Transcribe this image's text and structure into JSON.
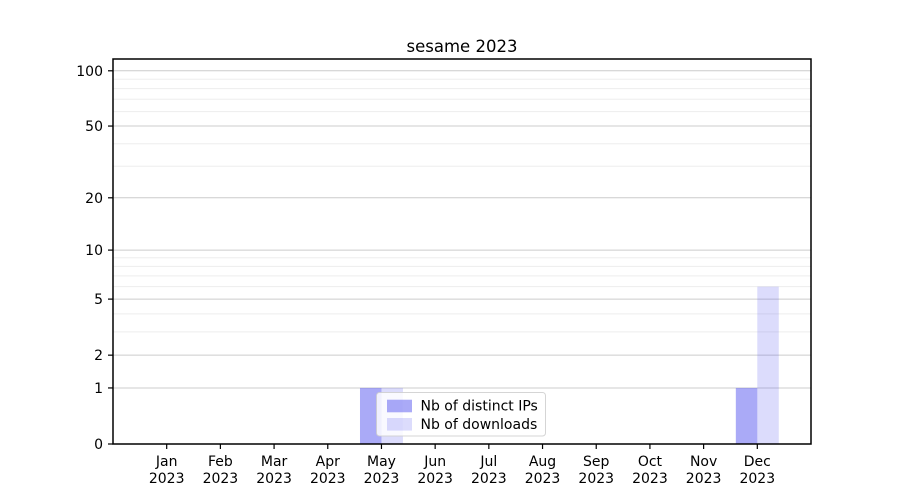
{
  "chart_data": {
    "type": "bar",
    "title": "sesame 2023",
    "categories": [
      "Jan 2023",
      "Feb 2023",
      "Mar 2023",
      "Apr 2023",
      "May 2023",
      "Jun 2023",
      "Jul 2023",
      "Aug 2023",
      "Sep 2023",
      "Oct 2023",
      "Nov 2023",
      "Dec 2023"
    ],
    "series": [
      {
        "name": "Nb of distinct IPs",
        "values": [
          0,
          0,
          0,
          0,
          1,
          0,
          0,
          0,
          0,
          0,
          0,
          1
        ],
        "fill": "#5555f0",
        "fill_opacity": 0.5,
        "rendered_color": "#a9aaf8"
      },
      {
        "name": "Nb of downloads",
        "values": [
          0,
          0,
          0,
          0,
          1,
          0,
          0,
          0,
          0,
          0,
          0,
          6
        ],
        "fill": "#5555f0",
        "fill_opacity": 0.206,
        "rendered_color": "#dbdcfa"
      }
    ],
    "xlabel": "",
    "ylabel": "",
    "yscale": "log1p",
    "y_major_ticks": [
      0,
      1,
      2,
      5,
      10,
      20,
      50,
      100
    ],
    "y_minor_gridlines": [
      3,
      4,
      6,
      7,
      8,
      9,
      30,
      40,
      60,
      70,
      80,
      90
    ],
    "ylim": [
      0,
      116
    ],
    "grid": "both",
    "legend_position": "lower-center",
    "colors": {
      "background": "#ffffff",
      "major_grid": "#cccccc",
      "minor_grid": "#ededed",
      "axis": "#000000",
      "text": "#000000",
      "legend_border": "#cccccc",
      "legend_fill": "#ffffff"
    }
  }
}
